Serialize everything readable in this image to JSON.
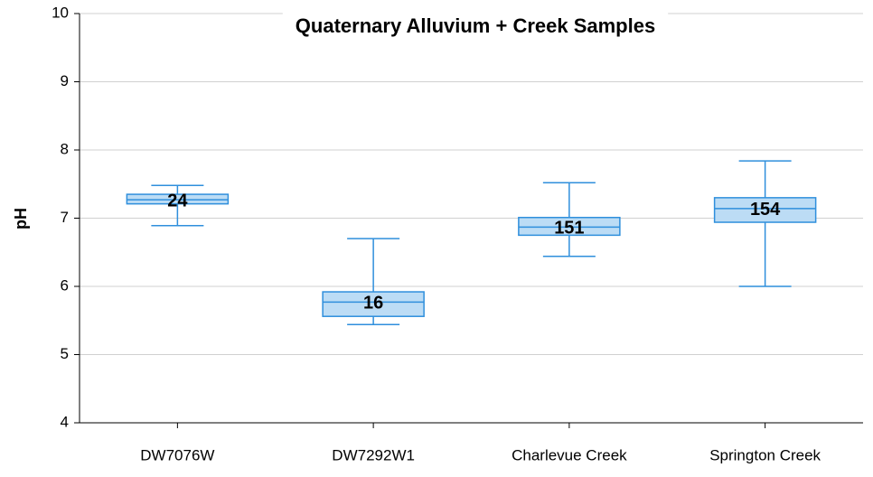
{
  "chart_data": {
    "type": "box",
    "title": "Quaternary Alluvium + Creek Samples",
    "y_label": "pH",
    "categories": [
      "DW7076W",
      "DW7292W1",
      "Charlevue Creek",
      "Springton Creek"
    ],
    "whisker_low": [
      6.89,
      5.44,
      6.44,
      6.0
    ],
    "q1": [
      7.21,
      5.56,
      6.75,
      6.94
    ],
    "median": [
      7.27,
      5.77,
      6.87,
      7.14
    ],
    "q3": [
      7.35,
      5.92,
      7.01,
      7.3
    ],
    "whisker_high": [
      7.48,
      6.7,
      7.52,
      7.84
    ],
    "counts": [
      24,
      16,
      151,
      154
    ],
    "ylim": [
      4,
      10
    ],
    "yticks": [
      4,
      5,
      6,
      7,
      8,
      9,
      10
    ],
    "grid": true,
    "color": "#2f8fdc",
    "fill": "#bcdcf5"
  }
}
